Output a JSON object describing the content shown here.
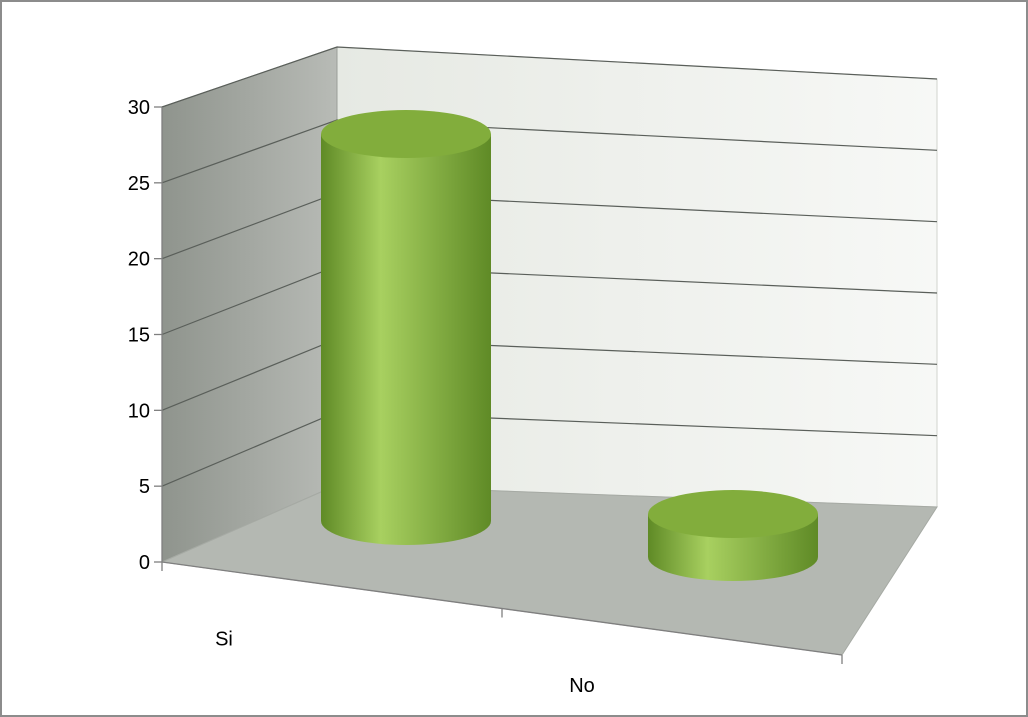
{
  "chart_data": {
    "type": "bar",
    "style": "3d-cylinder",
    "categories": [
      "Si",
      "No"
    ],
    "values": [
      27,
      3
    ],
    "ylim": [
      0,
      30
    ],
    "yticks": [
      0,
      5,
      10,
      15,
      20,
      25,
      30
    ],
    "title": "",
    "xlabel": "",
    "ylabel": "",
    "grid": true,
    "legend": "none",
    "colors": {
      "bar_light": "#a8d060",
      "bar_mid": "#8fbf45",
      "bar_dark": "#5f8a26",
      "bar_top": "#82ad3c",
      "back_wall": "#f1f3ef",
      "side_wall": "#a8aca6",
      "floor": "#b4b8b2",
      "gridline": "#5a5f5a"
    }
  }
}
